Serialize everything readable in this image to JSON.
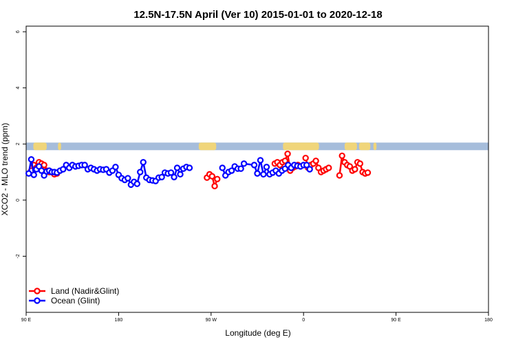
{
  "chart_data": {
    "type": "line",
    "title": "12.5N-17.5N April (Ver 10)   2015-01-01 to 2020-12-18",
    "xlabel": "Longitude (deg E)",
    "ylabel": "XCO2 - MLO trend (ppm)",
    "xlim": [
      90,
      450
    ],
    "ylim": [
      -4,
      6.2
    ],
    "x_ticks": [
      {
        "value": 90,
        "label": "90 E"
      },
      {
        "value": 180,
        "label": "180"
      },
      {
        "value": 270,
        "label": "90 W"
      },
      {
        "value": 360,
        "label": "0"
      },
      {
        "value": 450,
        "label": "90 E"
      },
      {
        "value": 540,
        "label": "180"
      }
    ],
    "x_ticks_note": "tick values are longitudes; axis spans 90E to 180 (wrapping)",
    "y_ticks": [
      {
        "value": -2,
        "label": "-2"
      },
      {
        "value": 0,
        "label": "0"
      },
      {
        "value": 2,
        "label": "2"
      },
      {
        "value": 4,
        "label": "4"
      },
      {
        "value": 6,
        "label": "6"
      }
    ],
    "land_band": {
      "y_min": 1.78,
      "y_max": 2.05,
      "color": "#a6bddb",
      "land_color": "#f0d57a"
    },
    "legend": {
      "placement": "bottom-left"
    },
    "series": [
      {
        "name": "Land (Nadir&Glint)",
        "color": "#ff0000",
        "segments": [
          [
            [
              95,
              1.05
            ],
            [
              97.5,
              1.25
            ],
            [
              100,
              1.15
            ],
            [
              102.5,
              1.35
            ],
            [
              105,
              1.3
            ],
            [
              107.5,
              1.25
            ],
            [
              110,
              1.05
            ],
            [
              112.5,
              1.0
            ],
            [
              115,
              1.0
            ],
            [
              117.5,
              0.92
            ],
            [
              120,
              0.95
            ]
          ],
          [
            [
              266,
              0.8
            ],
            [
              268.5,
              0.92
            ],
            [
              271,
              0.85
            ],
            [
              273.5,
              0.5
            ],
            [
              276,
              0.75
            ]
          ],
          [
            [
              332,
              1.3
            ],
            [
              334.5,
              1.35
            ],
            [
              337,
              1.25
            ],
            [
              339.5,
              1.35
            ],
            [
              342,
              1.4
            ],
            [
              344.5,
              1.65
            ],
            [
              347,
              1.05
            ],
            [
              349.5,
              1.15
            ],
            [
              352,
              1.2
            ],
            [
              354.5,
              1.25
            ]
          ],
          [
            [
              362,
              1.5
            ],
            [
              364.5,
              1.15
            ],
            [
              367,
              1.25
            ],
            [
              369.5,
              1.3
            ],
            [
              372,
              1.4
            ],
            [
              374.5,
              1.15
            ],
            [
              377,
              1.0
            ],
            [
              379.5,
              1.05
            ],
            [
              382,
              1.1
            ],
            [
              384.5,
              1.15
            ]
          ],
          [
            [
              395,
              0.88
            ],
            [
              397.5,
              1.58
            ],
            [
              400,
              1.35
            ],
            [
              402.5,
              1.25
            ],
            [
              405,
              1.2
            ],
            [
              407.5,
              1.05
            ],
            [
              410,
              1.1
            ],
            [
              412.5,
              1.35
            ],
            [
              415,
              1.3
            ],
            [
              417.5,
              1.0
            ],
            [
              420,
              0.95
            ],
            [
              422.5,
              0.98
            ]
          ]
        ]
      },
      {
        "name": "Ocean (Glint)",
        "color": "#0000ff",
        "points": [
          [
            92.5,
            0.95
          ],
          [
            95,
            1.45
          ],
          [
            97.5,
            0.9
          ],
          [
            100,
            1.1
          ],
          [
            102.5,
            1.2
          ],
          [
            105,
            1.05
          ],
          [
            107.5,
            0.88
          ],
          [
            110,
            1.02
          ],
          [
            112.5,
            1.05
          ],
          [
            115,
            1.0
          ],
          [
            117.5,
            1.0
          ],
          [
            120,
            0.98
          ],
          [
            123,
            1.05
          ],
          [
            126,
            1.1
          ],
          [
            129,
            1.25
          ],
          [
            132,
            1.15
          ],
          [
            135,
            1.25
          ],
          [
            138,
            1.2
          ],
          [
            141,
            1.22
          ],
          [
            144,
            1.25
          ],
          [
            147,
            1.25
          ],
          [
            150,
            1.1
          ],
          [
            153,
            1.15
          ],
          [
            156,
            1.1
          ],
          [
            159,
            1.05
          ],
          [
            162,
            1.1
          ],
          [
            165,
            1.08
          ],
          [
            168,
            1.1
          ],
          [
            171,
            0.98
          ],
          [
            174,
            1.05
          ],
          [
            177,
            1.18
          ],
          [
            180,
            0.9
          ],
          [
            183,
            0.78
          ],
          [
            186,
            0.72
          ],
          [
            189,
            0.78
          ],
          [
            192,
            0.55
          ],
          [
            195,
            0.65
          ],
          [
            198,
            0.58
          ],
          [
            201,
            1.0
          ],
          [
            204,
            1.35
          ],
          [
            207,
            0.8
          ],
          [
            210,
            0.72
          ],
          [
            213,
            0.7
          ],
          [
            216,
            0.68
          ],
          [
            219,
            0.8
          ],
          [
            222,
            0.82
          ],
          [
            225,
            0.98
          ],
          [
            228,
            0.95
          ],
          [
            231,
            0.98
          ],
          [
            234,
            0.82
          ],
          [
            237,
            1.15
          ],
          [
            240,
            0.92
          ],
          [
            243,
            1.12
          ],
          [
            246,
            1.18
          ],
          [
            249,
            1.15
          ],
          [
            281,
            1.15
          ],
          [
            284,
            0.88
          ],
          [
            287,
            1.0
          ],
          [
            290,
            1.05
          ],
          [
            293,
            1.2
          ],
          [
            296,
            1.12
          ],
          [
            299,
            1.12
          ],
          [
            302,
            1.3
          ],
          [
            312,
            1.25
          ],
          [
            315,
            0.95
          ],
          [
            318,
            1.42
          ],
          [
            321,
            0.92
          ],
          [
            324,
            1.18
          ],
          [
            327,
            0.92
          ],
          [
            330,
            0.98
          ],
          [
            333,
            1.05
          ],
          [
            336,
            0.95
          ],
          [
            339,
            1.05
          ],
          [
            342,
            1.12
          ],
          [
            345,
            1.25
          ],
          [
            348,
            1.15
          ],
          [
            351,
            1.25
          ],
          [
            354,
            1.22
          ],
          [
            357,
            1.2
          ],
          [
            360,
            1.25
          ],
          [
            363,
            1.25
          ],
          [
            366,
            1.1
          ]
        ],
        "note": "x in axis coordinates where values above 360 continue past 0 longitude toward 90E"
      }
    ]
  }
}
